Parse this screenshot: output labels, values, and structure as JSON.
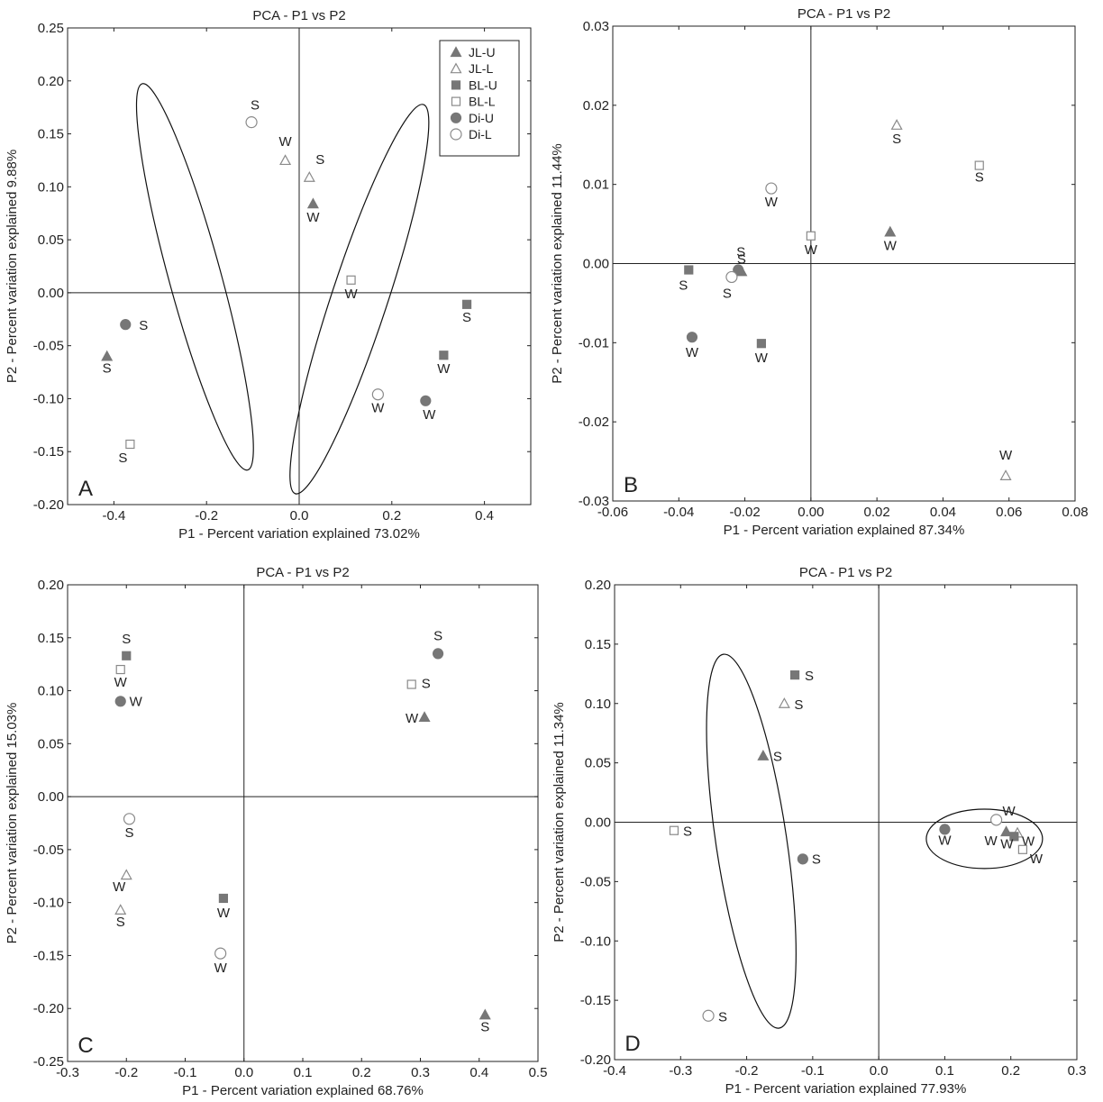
{
  "figure": {
    "legend": [
      {
        "code": "JL-U",
        "marker": "triangle-filled"
      },
      {
        "code": "JL-L",
        "marker": "triangle-open"
      },
      {
        "code": "BL-U",
        "marker": "square-filled"
      },
      {
        "code": "BL-L",
        "marker": "square-open"
      },
      {
        "code": "Di-U",
        "marker": "circle-filled"
      },
      {
        "code": "Di-L",
        "marker": "circle-open"
      }
    ],
    "colors": {
      "marker_fill": "#777777",
      "marker_stroke": "#8a8a8a",
      "axis": "#222222",
      "ellipse": "#111111"
    }
  },
  "chart_data": [
    {
      "panel": "A",
      "type": "scatter",
      "title": "PCA - P1 vs P2",
      "xlabel": "P1 - Percent variation explained 73.02%",
      "ylabel": "P2 - Percent variation explained 9.88%",
      "xlim": [
        -0.5,
        0.5
      ],
      "ylim": [
        -0.2,
        0.25
      ],
      "xticks": [
        "-0.4",
        "-0.2",
        "0.0",
        "0.2",
        "0.4"
      ],
      "yticks": [
        "-0.20",
        "-0.15",
        "-0.10",
        "-0.05",
        "0.00",
        "0.05",
        "0.10",
        "0.15",
        "0.20",
        "0.25"
      ],
      "legend_position": "top-right",
      "points": [
        {
          "series": "JL-U",
          "x": -0.415,
          "y": -0.06,
          "label": "S"
        },
        {
          "series": "JL-U",
          "x": 0.03,
          "y": 0.084,
          "label": "W"
        },
        {
          "series": "JL-L",
          "x": -0.03,
          "y": 0.125,
          "label": "W"
        },
        {
          "series": "JL-L",
          "x": 0.022,
          "y": 0.109,
          "label": "S"
        },
        {
          "series": "BL-U",
          "x": 0.312,
          "y": -0.059,
          "label": "W"
        },
        {
          "series": "BL-U",
          "x": 0.362,
          "y": -0.011,
          "label": "S"
        },
        {
          "series": "BL-L",
          "x": -0.365,
          "y": -0.143,
          "label": "S"
        },
        {
          "series": "BL-L",
          "x": 0.112,
          "y": 0.012,
          "label": "W"
        },
        {
          "series": "Di-U",
          "x": -0.375,
          "y": -0.03,
          "label": "S"
        },
        {
          "series": "Di-U",
          "x": 0.273,
          "y": -0.102,
          "label": "W"
        },
        {
          "series": "Di-L",
          "x": -0.103,
          "y": 0.161,
          "label": "S"
        },
        {
          "series": "Di-L",
          "x": 0.17,
          "y": -0.096,
          "label": "W"
        }
      ],
      "ellipses": [
        {
          "cx": -0.225,
          "cy": 0.015,
          "rx": 0.215,
          "ry": 0.038,
          "rotate_deg": -58
        },
        {
          "cx": 0.13,
          "cy": -0.006,
          "rx": 0.23,
          "ry": 0.038,
          "rotate_deg": 53
        }
      ]
    },
    {
      "panel": "B",
      "type": "scatter",
      "title": "PCA - P1 vs P2",
      "xlabel": "P1 - Percent variation explained 87.34%",
      "ylabel": "P2 - Percent variation explained 11.44%",
      "xlim": [
        -0.06,
        0.08
      ],
      "ylim": [
        -0.03,
        0.03
      ],
      "xticks": [
        "-0.06",
        "-0.04",
        "-0.02",
        "0.00",
        "0.02",
        "0.04",
        "0.06",
        "0.08"
      ],
      "yticks": [
        "-0.03",
        "-0.02",
        "-0.01",
        "0.00",
        "0.01",
        "0.02",
        "0.03"
      ],
      "points": [
        {
          "series": "JL-U",
          "x": 0.024,
          "y": 0.004,
          "label": "W"
        },
        {
          "series": "JL-U",
          "x": -0.021,
          "y": -0.001,
          "label": "S"
        },
        {
          "series": "JL-L",
          "x": 0.026,
          "y": 0.0175,
          "label": "S"
        },
        {
          "series": "JL-L",
          "x": 0.059,
          "y": -0.0268,
          "label": "W"
        },
        {
          "series": "BL-U",
          "x": -0.037,
          "y": -0.0008,
          "label": "S"
        },
        {
          "series": "BL-U",
          "x": -0.015,
          "y": -0.0101,
          "label": "W"
        },
        {
          "series": "BL-L",
          "x": 0.0,
          "y": 0.0035,
          "label": "W"
        },
        {
          "series": "BL-L",
          "x": 0.051,
          "y": 0.0124,
          "label": "S"
        },
        {
          "series": "Di-U",
          "x": -0.036,
          "y": -0.0093,
          "label": "W"
        },
        {
          "series": "Di-U",
          "x": -0.022,
          "y": -0.0008,
          "label": "S"
        },
        {
          "series": "Di-L",
          "x": -0.012,
          "y": 0.0095,
          "label": "W"
        },
        {
          "series": "Di-L",
          "x": -0.024,
          "y": -0.0017,
          "label": "S"
        }
      ],
      "ellipses": []
    },
    {
      "panel": "C",
      "type": "scatter",
      "title": "PCA - P1 vs P2",
      "xlabel": "P1 - Percent variation explained 68.76%",
      "ylabel": "P2 - Percent variation explained 15.03%",
      "xlim": [
        -0.3,
        0.5
      ],
      "ylim": [
        -0.25,
        0.2
      ],
      "xticks": [
        "-0.3",
        "-0.2",
        "-0.1",
        "0.0",
        "0.1",
        "0.2",
        "0.3",
        "0.4",
        "0.5"
      ],
      "yticks": [
        "-0.25",
        "-0.20",
        "-0.15",
        "-0.10",
        "-0.05",
        "0.00",
        "0.05",
        "0.10",
        "0.15",
        "0.20"
      ],
      "points": [
        {
          "series": "JL-U",
          "x": 0.307,
          "y": 0.075,
          "label": "W"
        },
        {
          "series": "JL-U",
          "x": 0.41,
          "y": -0.206,
          "label": "S"
        },
        {
          "series": "JL-L",
          "x": -0.2,
          "y": -0.074,
          "label": "W"
        },
        {
          "series": "JL-L",
          "x": -0.21,
          "y": -0.107,
          "label": "S"
        },
        {
          "series": "BL-U",
          "x": -0.2,
          "y": 0.133,
          "label": "S"
        },
        {
          "series": "BL-U",
          "x": -0.035,
          "y": -0.096,
          "label": "W"
        },
        {
          "series": "BL-L",
          "x": -0.21,
          "y": 0.12,
          "label": "W"
        },
        {
          "series": "BL-L",
          "x": 0.285,
          "y": 0.106,
          "label": "S"
        },
        {
          "series": "Di-U",
          "x": -0.21,
          "y": 0.09,
          "label": "W"
        },
        {
          "series": "Di-U",
          "x": 0.33,
          "y": 0.135,
          "label": "S"
        },
        {
          "series": "Di-L",
          "x": -0.195,
          "y": -0.021,
          "label": "S"
        },
        {
          "series": "Di-L",
          "x": -0.04,
          "y": -0.148,
          "label": "W"
        }
      ],
      "ellipses": []
    },
    {
      "panel": "D",
      "type": "scatter",
      "title": "PCA - P1 vs P2",
      "xlabel": "P1 - Percent variation explained 77.93%",
      "ylabel": "P2 - Percent variation explained 11.34%",
      "xlim": [
        -0.4,
        0.3
      ],
      "ylim": [
        -0.2,
        0.2
      ],
      "xticks": [
        "-0.4",
        "-0.3",
        "-0.2",
        "-0.1",
        "0.0",
        "0.1",
        "0.2",
        "0.3"
      ],
      "yticks": [
        "-0.20",
        "-0.15",
        "-0.10",
        "-0.05",
        "0.00",
        "0.05",
        "0.10",
        "0.15",
        "0.20"
      ],
      "points": [
        {
          "series": "JL-U",
          "x": -0.175,
          "y": 0.056,
          "label": "S"
        },
        {
          "series": "JL-U",
          "x": 0.193,
          "y": -0.008,
          "label": "W"
        },
        {
          "series": "JL-L",
          "x": -0.143,
          "y": 0.1,
          "label": "S"
        },
        {
          "series": "JL-L",
          "x": 0.21,
          "y": -0.009,
          "label": "W"
        },
        {
          "series": "BL-U",
          "x": -0.127,
          "y": 0.124,
          "label": "S"
        },
        {
          "series": "BL-U",
          "x": 0.205,
          "y": -0.012,
          "label": "W"
        },
        {
          "series": "BL-L",
          "x": -0.31,
          "y": -0.007,
          "label": "S"
        },
        {
          "series": "BL-L",
          "x": 0.218,
          "y": -0.023,
          "label": "W"
        },
        {
          "series": "Di-U",
          "x": -0.115,
          "y": -0.031,
          "label": "S"
        },
        {
          "series": "Di-U",
          "x": 0.1,
          "y": -0.006,
          "label": "W"
        },
        {
          "series": "Di-L",
          "x": -0.258,
          "y": -0.163,
          "label": "S"
        },
        {
          "series": "Di-L",
          "x": 0.178,
          "y": 0.002,
          "label": "W"
        }
      ],
      "ellipses": [
        {
          "cx": -0.193,
          "cy": -0.016,
          "rx": 0.163,
          "ry": 0.05,
          "rotate_deg": -75
        },
        {
          "cx": 0.16,
          "cy": -0.014,
          "rx": 0.088,
          "ry": 0.025,
          "rotate_deg": 0
        }
      ]
    }
  ]
}
